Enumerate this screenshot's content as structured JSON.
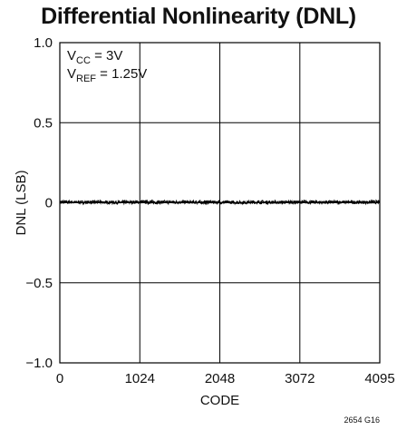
{
  "chart_data": {
    "type": "line",
    "title": "Differential Nonlinearity (DNL)",
    "xlabel": "CODE",
    "ylabel": "DNL (LSB)",
    "xlim": [
      0,
      4095
    ],
    "ylim": [
      -1.0,
      1.0
    ],
    "x_ticks": [
      0,
      1024,
      2048,
      3072,
      4095
    ],
    "x_tick_labels": [
      "0",
      "1024",
      "2048",
      "3072",
      "4095"
    ],
    "y_ticks": [
      1.0,
      0.5,
      0,
      -0.5,
      -1.0
    ],
    "y_tick_labels": [
      "1.0",
      "0.5",
      "0",
      "−0.5",
      "−1.0"
    ],
    "grid": true,
    "conditions": [
      {
        "symbol": "V",
        "sub": "CC",
        "text": " = 3V"
      },
      {
        "symbol": "V",
        "sub": "REF",
        "text": " = 1.25V"
      }
    ],
    "note": "2654 G16",
    "series": [
      {
        "x": [
          0,
          256,
          512,
          768,
          1024,
          1280,
          1536,
          1792,
          2048,
          2304,
          2560,
          2816,
          3072,
          3328,
          3584,
          3840,
          4095
        ],
        "values": [
          0.005,
          0.003,
          0.004,
          0.002,
          0.005,
          0.003,
          0.004,
          0.003,
          0.004,
          0.002,
          0.004,
          0.003,
          0.004,
          0.003,
          0.004,
          0.003,
          0.004
        ],
        "noise_band": 0.01,
        "color": "#000000"
      }
    ]
  }
}
